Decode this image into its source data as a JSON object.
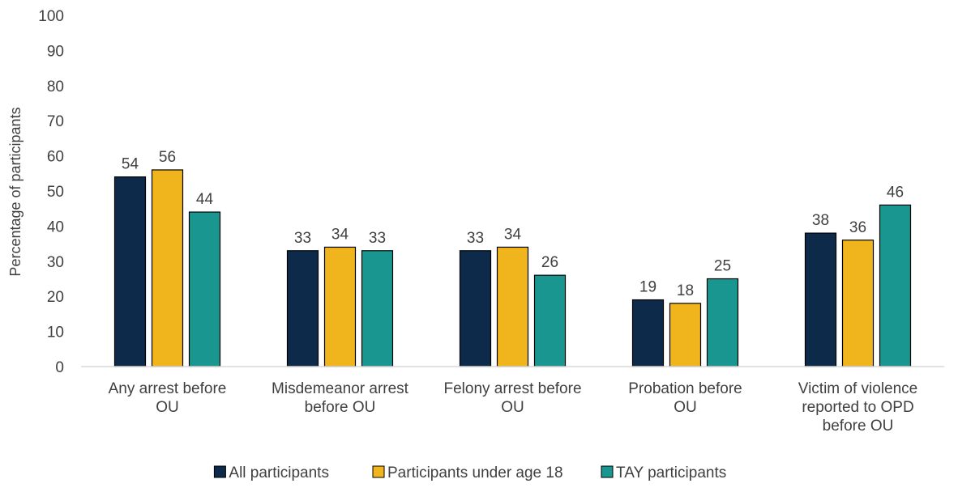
{
  "chart_data": {
    "type": "bar",
    "title": "",
    "xlabel": "",
    "ylabel": "Percentage  of participants",
    "ylim": [
      0,
      100
    ],
    "yticks": [
      0,
      10,
      20,
      30,
      40,
      50,
      60,
      70,
      80,
      90,
      100
    ],
    "grid": false,
    "legend_position": "bottom",
    "categories": [
      [
        "Any arrest before",
        "OU"
      ],
      [
        "Misdemeanor arrest",
        "before OU"
      ],
      [
        "Felony arrest before",
        "OU"
      ],
      [
        "Probation before",
        "OU"
      ],
      [
        "Victim of violence",
        "reported to OPD",
        "before OU"
      ]
    ],
    "series": [
      {
        "name": "All participants",
        "color": "#0d2a4a",
        "values": [
          54,
          33,
          33,
          19,
          38
        ]
      },
      {
        "name": "Participants under age 18",
        "color": "#f0b41c",
        "values": [
          56,
          34,
          34,
          18,
          36
        ]
      },
      {
        "name": "TAY participants",
        "color": "#1a9691",
        "values": [
          44,
          33,
          26,
          25,
          46
        ]
      }
    ],
    "data_labels": [
      [
        "54",
        "33",
        "33",
        "19",
        "38"
      ],
      [
        "56",
        "34",
        "34",
        "18",
        "36"
      ],
      [
        "44",
        "33",
        "26",
        "25",
        "46"
      ]
    ]
  }
}
